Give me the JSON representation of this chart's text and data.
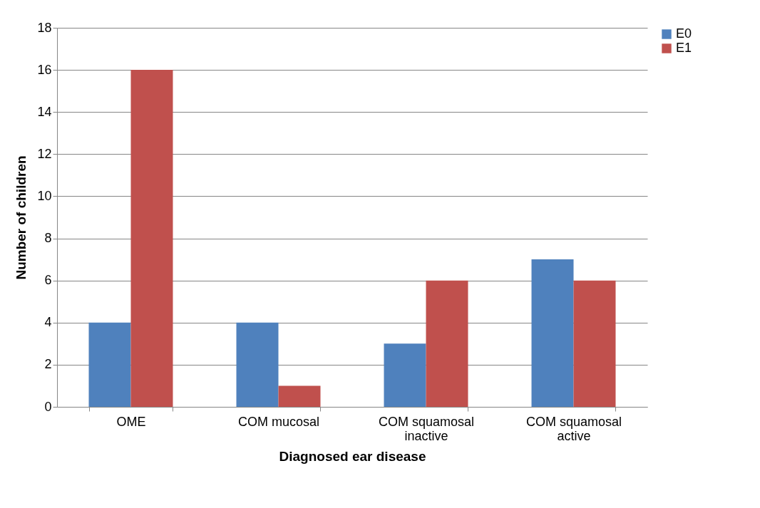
{
  "chart_data": {
    "type": "bar",
    "xlabel": "Diagnosed ear disease",
    "ylabel": "Number of children",
    "categories": [
      "OME",
      "COM mucosal",
      "COM squamosal inactive",
      "COM squamosal active"
    ],
    "series": [
      {
        "name": "E0",
        "color": "#4f81bd",
        "values": [
          4,
          4,
          3,
          7
        ]
      },
      {
        "name": "E1",
        "color": "#c0504d",
        "values": [
          16,
          1,
          6,
          6
        ]
      }
    ],
    "ylim": [
      0,
      18
    ],
    "yticks": [
      0,
      2,
      4,
      6,
      8,
      10,
      12,
      14,
      16,
      18
    ],
    "grid": "y",
    "legend": "right"
  }
}
